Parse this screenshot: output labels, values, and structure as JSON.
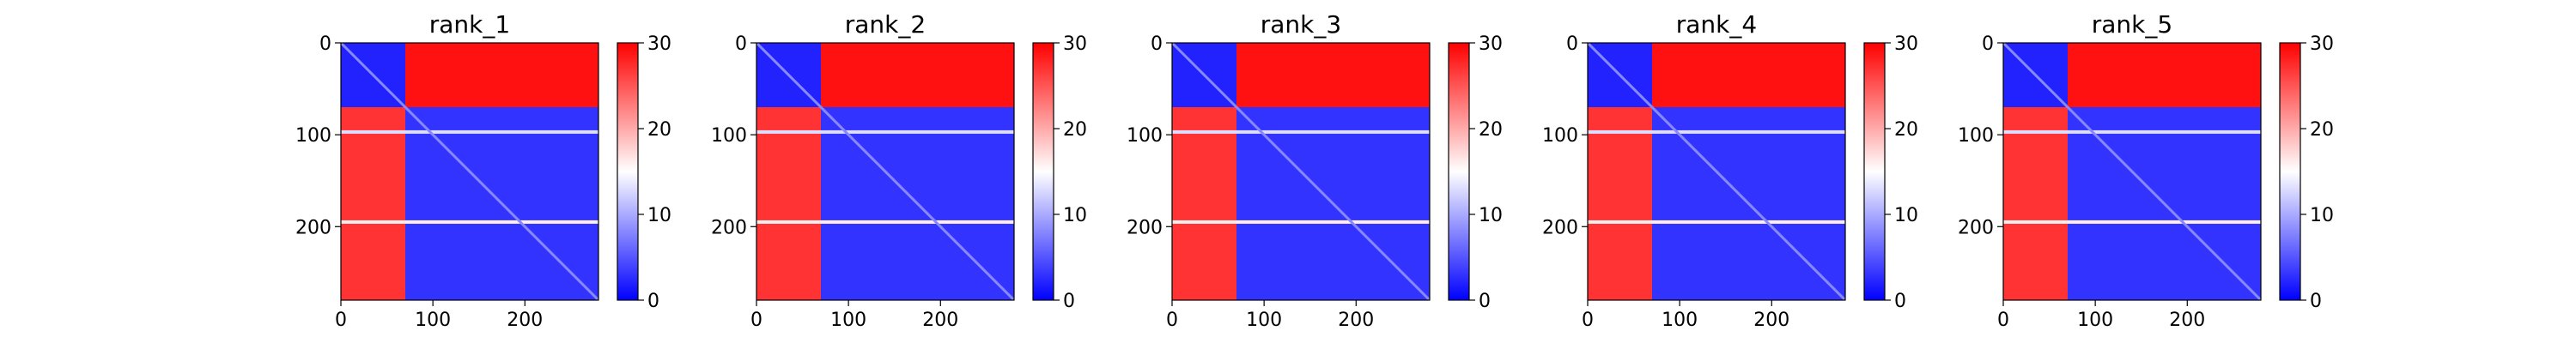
{
  "chart_data": [
    {
      "type": "heatmap",
      "title": "rank_1",
      "x_ticks": [
        0,
        100,
        200
      ],
      "y_ticks": [
        0,
        100,
        200
      ],
      "xlim": [
        0,
        280
      ],
      "ylim": [
        280,
        0
      ],
      "colorbar": {
        "ticks": [
          0,
          10,
          20,
          30
        ],
        "range": [
          0,
          30
        ],
        "colors": [
          "#0000ff",
          "#ffffff",
          "#ff0000"
        ]
      },
      "blocks": [
        {
          "x": [
            0,
            70
          ],
          "y": [
            0,
            70
          ],
          "value": 2
        },
        {
          "x": [
            70,
            280
          ],
          "y": [
            0,
            70
          ],
          "value": 29
        },
        {
          "x": [
            0,
            70
          ],
          "y": [
            70,
            280
          ],
          "value": 27
        },
        {
          "x": [
            70,
            280
          ],
          "y": [
            70,
            280
          ],
          "value": 3
        }
      ],
      "bands": [
        {
          "axis": "y",
          "at": 97,
          "value": 13
        },
        {
          "axis": "y",
          "at": 195,
          "value": 16
        }
      ],
      "diagonal_value": 8
    },
    {
      "type": "heatmap",
      "title": "rank_2",
      "x_ticks": [
        0,
        100,
        200
      ],
      "y_ticks": [
        0,
        100,
        200
      ],
      "xlim": [
        0,
        280
      ],
      "ylim": [
        280,
        0
      ],
      "colorbar": {
        "ticks": [
          0,
          10,
          20,
          30
        ],
        "range": [
          0,
          30
        ],
        "colors": [
          "#0000ff",
          "#ffffff",
          "#ff0000"
        ]
      },
      "blocks": [
        {
          "x": [
            0,
            70
          ],
          "y": [
            0,
            70
          ],
          "value": 2
        },
        {
          "x": [
            70,
            280
          ],
          "y": [
            0,
            70
          ],
          "value": 29
        },
        {
          "x": [
            0,
            70
          ],
          "y": [
            70,
            280
          ],
          "value": 27
        },
        {
          "x": [
            70,
            280
          ],
          "y": [
            70,
            280
          ],
          "value": 3
        }
      ],
      "bands": [
        {
          "axis": "y",
          "at": 97,
          "value": 13
        },
        {
          "axis": "y",
          "at": 195,
          "value": 16
        }
      ],
      "diagonal_value": 8
    },
    {
      "type": "heatmap",
      "title": "rank_3",
      "x_ticks": [
        0,
        100,
        200
      ],
      "y_ticks": [
        0,
        100,
        200
      ],
      "xlim": [
        0,
        280
      ],
      "ylim": [
        280,
        0
      ],
      "colorbar": {
        "ticks": [
          0,
          10,
          20,
          30
        ],
        "range": [
          0,
          30
        ],
        "colors": [
          "#0000ff",
          "#ffffff",
          "#ff0000"
        ]
      },
      "blocks": [
        {
          "x": [
            0,
            70
          ],
          "y": [
            0,
            70
          ],
          "value": 2
        },
        {
          "x": [
            70,
            280
          ],
          "y": [
            0,
            70
          ],
          "value": 29
        },
        {
          "x": [
            0,
            70
          ],
          "y": [
            70,
            280
          ],
          "value": 27
        },
        {
          "x": [
            70,
            280
          ],
          "y": [
            70,
            280
          ],
          "value": 3
        }
      ],
      "bands": [
        {
          "axis": "y",
          "at": 97,
          "value": 13
        },
        {
          "axis": "y",
          "at": 195,
          "value": 16
        }
      ],
      "diagonal_value": 8
    },
    {
      "type": "heatmap",
      "title": "rank_4",
      "x_ticks": [
        0,
        100,
        200
      ],
      "y_ticks": [
        0,
        100,
        200
      ],
      "xlim": [
        0,
        280
      ],
      "ylim": [
        280,
        0
      ],
      "colorbar": {
        "ticks": [
          0,
          10,
          20,
          30
        ],
        "range": [
          0,
          30
        ],
        "colors": [
          "#0000ff",
          "#ffffff",
          "#ff0000"
        ]
      },
      "blocks": [
        {
          "x": [
            0,
            70
          ],
          "y": [
            0,
            70
          ],
          "value": 2
        },
        {
          "x": [
            70,
            280
          ],
          "y": [
            0,
            70
          ],
          "value": 29
        },
        {
          "x": [
            0,
            70
          ],
          "y": [
            70,
            280
          ],
          "value": 27
        },
        {
          "x": [
            70,
            280
          ],
          "y": [
            70,
            280
          ],
          "value": 3
        }
      ],
      "bands": [
        {
          "axis": "y",
          "at": 97,
          "value": 13
        },
        {
          "axis": "y",
          "at": 195,
          "value": 16
        }
      ],
      "diagonal_value": 8
    },
    {
      "type": "heatmap",
      "title": "rank_5",
      "x_ticks": [
        0,
        100,
        200
      ],
      "y_ticks": [
        0,
        100,
        200
      ],
      "xlim": [
        0,
        280
      ],
      "ylim": [
        280,
        0
      ],
      "colorbar": {
        "ticks": [
          0,
          10,
          20,
          30
        ],
        "range": [
          0,
          30
        ],
        "colors": [
          "#0000ff",
          "#ffffff",
          "#ff0000"
        ]
      },
      "blocks": [
        {
          "x": [
            0,
            70
          ],
          "y": [
            0,
            70
          ],
          "value": 2
        },
        {
          "x": [
            70,
            280
          ],
          "y": [
            0,
            70
          ],
          "value": 29
        },
        {
          "x": [
            0,
            70
          ],
          "y": [
            70,
            280
          ],
          "value": 27
        },
        {
          "x": [
            70,
            280
          ],
          "y": [
            70,
            280
          ],
          "value": 3
        }
      ],
      "bands": [
        {
          "axis": "y",
          "at": 97,
          "value": 13
        },
        {
          "axis": "y",
          "at": 195,
          "value": 16
        }
      ],
      "diagonal_value": 8
    }
  ]
}
